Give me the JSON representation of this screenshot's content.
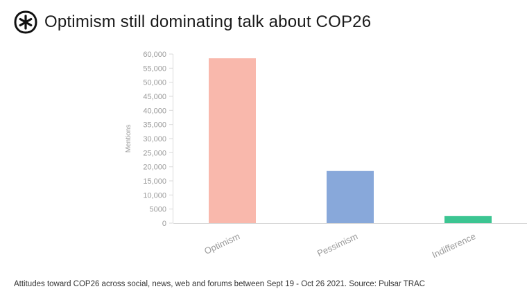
{
  "header": {
    "title": "Optimism still dominating talk about COP26",
    "logo_icon": "pulsar-asterisk-logo-icon"
  },
  "chart_data": {
    "type": "bar",
    "title": "Optimism still dominating talk about COP26",
    "categories": [
      "Optimism",
      "Pessimism",
      "Indifference"
    ],
    "values": [
      58500,
      18500,
      2500
    ],
    "colors": [
      "#f9b8ac",
      "#88a8da",
      "#3cc592"
    ],
    "xlabel": "",
    "ylabel": "Mentions",
    "ylim": [
      0,
      60000
    ],
    "yticks": [
      0,
      5000,
      10000,
      15000,
      20000,
      25000,
      30000,
      35000,
      40000,
      45000,
      50000,
      55000,
      60000
    ],
    "ytick_labels": [
      "0",
      "5000",
      "10,000",
      "15,000",
      "20,000",
      "25,000",
      "30,000",
      "35,000",
      "40,000",
      "45,000",
      "50,000",
      "55,000",
      "60,000"
    ],
    "grid": false,
    "legend": "none"
  },
  "footer": {
    "caption": "Attitudes toward COP26 across social, news, web and forums between Sept 19 - Oct 26 2021. Source: Pulsar TRAC"
  }
}
